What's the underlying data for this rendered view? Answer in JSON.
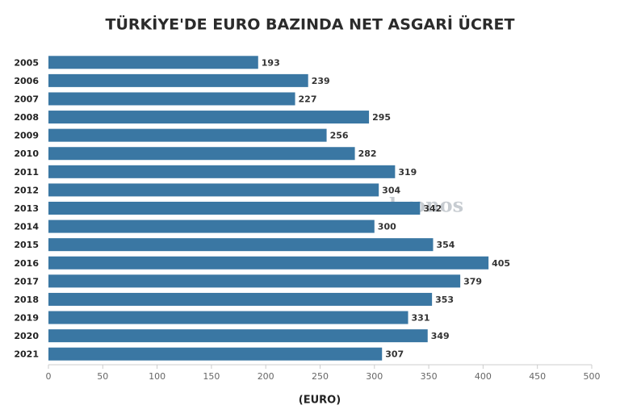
{
  "chart_data": {
    "type": "hbar",
    "title": "TÜRKİYE'DE EURO BAZINDA NET ASGARİ ÜCRET",
    "x_label": "(EURO)",
    "watermark": "kronos",
    "categories": [
      "2005",
      "2006",
      "2007",
      "2008",
      "2009",
      "2010",
      "2011",
      "2012",
      "2013",
      "2014",
      "2015",
      "2016",
      "2017",
      "2018",
      "2019",
      "2020",
      "2021"
    ],
    "values": [
      193,
      239,
      227,
      295,
      256,
      282,
      319,
      304,
      342,
      300,
      354,
      405,
      379,
      353,
      331,
      349,
      307
    ],
    "color": "#3a77a3",
    "xlim": [
      0,
      500
    ],
    "xticks": [
      0,
      50,
      100,
      150,
      200,
      250,
      300,
      350,
      400,
      450,
      500
    ],
    "grid": false
  }
}
